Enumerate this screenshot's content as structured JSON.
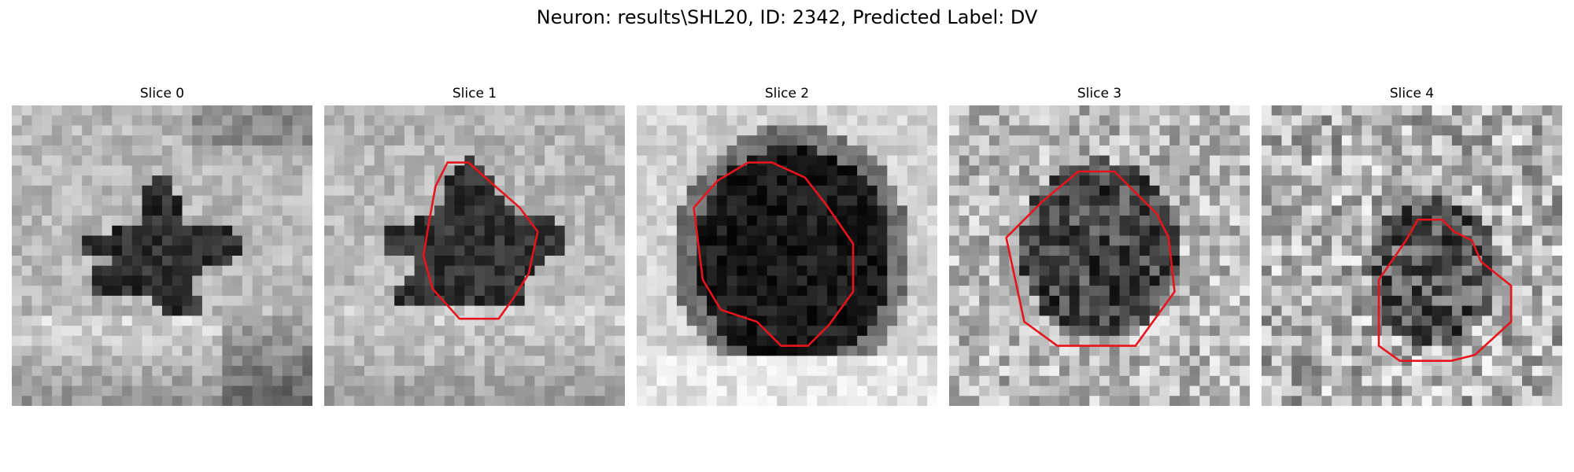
{
  "figure": {
    "suptitle": "Neuron: results\\SHL20, ID: 2342, Predicted Label: DV",
    "contour_color": "#e8141c",
    "slices": [
      {
        "title": "Slice 0",
        "has_contour": false
      },
      {
        "title": "Slice 1",
        "has_contour": true
      },
      {
        "title": "Slice 2",
        "has_contour": true
      },
      {
        "title": "Slice 3",
        "has_contour": true
      },
      {
        "title": "Slice 4",
        "has_contour": true
      }
    ]
  }
}
